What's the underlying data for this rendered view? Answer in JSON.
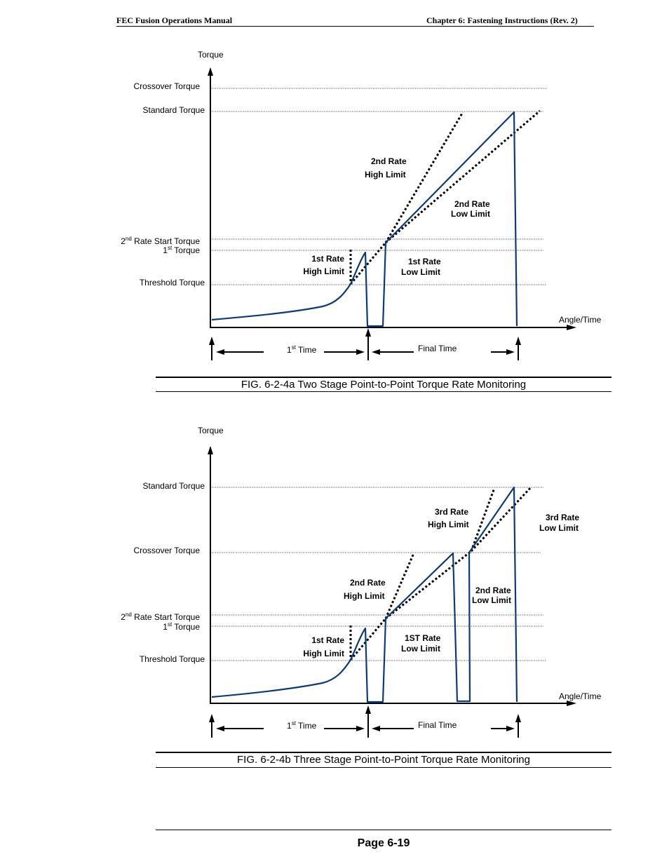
{
  "header": {
    "left": "FEC Fusion Operations Manual",
    "right": "Chapter 6:  Fastening Instructions (Rev. 2)"
  },
  "figure_a": {
    "y_axis_title": "Torque",
    "x_axis_title": "Angle/Time",
    "crossover_torque": "Crossover Torque",
    "standard_torque": "Standard Torque",
    "second_rate_start_pre": "2",
    "second_rate_start_sup": "nd",
    "second_rate_start_post": " Rate Start Torque",
    "first_torque_pre": "1",
    "first_torque_sup": "st",
    "first_torque_post": " Torque",
    "threshold_torque": "Threshold Torque",
    "rate2_high_line1": "2nd Rate",
    "rate2_high_line2": "High Limit",
    "rate2_low_line1": "2nd Rate",
    "rate2_low_line2": "Low Limit",
    "rate1_high_line1": "1st Rate",
    "rate1_high_line2": "High Limit",
    "rate1_low_line1": "1st Rate",
    "rate1_low_line2": "Low Limit",
    "first_time_pre": "1",
    "first_time_sup": "st",
    "first_time_post": " Time",
    "final_time": "Final Time",
    "caption": "FIG. 6-2-4a Two Stage Point-to-Point Torque Rate Monitoring"
  },
  "figure_b": {
    "y_axis_title": "Torque",
    "x_axis_title": "Angle/Time",
    "standard_torque": "Standard Torque",
    "crossover_torque": "Crossover Torque",
    "second_rate_start_pre": "2",
    "second_rate_start_sup": "nd",
    "second_rate_start_post": " Rate Start Torque",
    "first_torque_pre": "1",
    "first_torque_sup": "st",
    "first_torque_post": " Torque",
    "threshold_torque": "Threshold Torque",
    "rate3_high_line1": "3rd Rate",
    "rate3_high_line2": "High Limit",
    "rate3_low_line1": "3rd Rate",
    "rate3_low_line2": "Low Limit",
    "rate2_high_line1": "2nd Rate",
    "rate2_high_line2": "High Limit",
    "rate2_low_line1": "2nd Rate",
    "rate2_low_line2": "Low Limit",
    "rate1_high_line1": "1st Rate",
    "rate1_high_line2": "High Limit",
    "rate1_low_line1": "1ST Rate",
    "rate1_low_line2": "Low Limit",
    "first_time_pre": "1",
    "first_time_sup": "st",
    "first_time_post": " Time",
    "final_time": "Final Time",
    "caption": "FIG. 6-2-4b Three Stage Point-to-Point Torque Rate Monitoring"
  },
  "footer": {
    "page": "Page 6-19"
  },
  "colors": {
    "curve": "#0d3a78",
    "ink": "#000000"
  }
}
